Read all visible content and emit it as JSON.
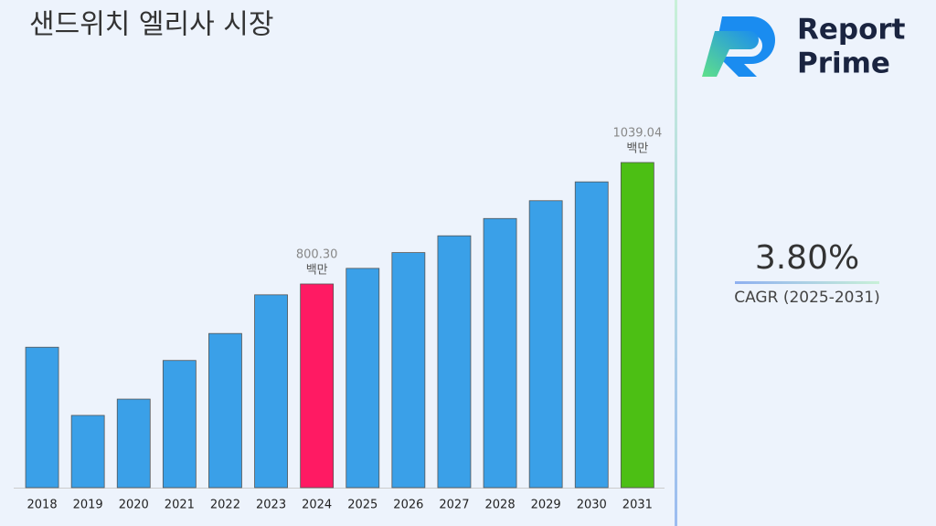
{
  "chart_data": {
    "type": "bar",
    "title": "샌드위치 엘리사 시장",
    "categories": [
      "2018",
      "2019",
      "2020",
      "2021",
      "2022",
      "2023",
      "2024",
      "2025",
      "2026",
      "2027",
      "2028",
      "2029",
      "2030",
      "2031"
    ],
    "values": [
      676,
      542,
      574,
      650,
      703,
      779,
      800.3,
      831,
      862,
      895,
      929,
      964,
      1001,
      1039.04
    ],
    "value_labels": [
      null,
      null,
      null,
      null,
      null,
      null,
      "800.30",
      null,
      null,
      null,
      null,
      null,
      null,
      "1039.04"
    ],
    "value_unit": "백만",
    "colors": [
      "#3aa0e8",
      "#3aa0e8",
      "#3aa0e8",
      "#3aa0e8",
      "#3aa0e8",
      "#3aa0e8",
      "#ff1a63",
      "#3aa0e8",
      "#3aa0e8",
      "#3aa0e8",
      "#3aa0e8",
      "#3aa0e8",
      "#3aa0e8",
      "#4cbf14"
    ],
    "ylim": [
      400,
      1100
    ]
  },
  "logo": {
    "line1": "Report",
    "line2": "Prime"
  },
  "cagr": {
    "value": "3.80%",
    "label": "CAGR (2025-2031)"
  }
}
